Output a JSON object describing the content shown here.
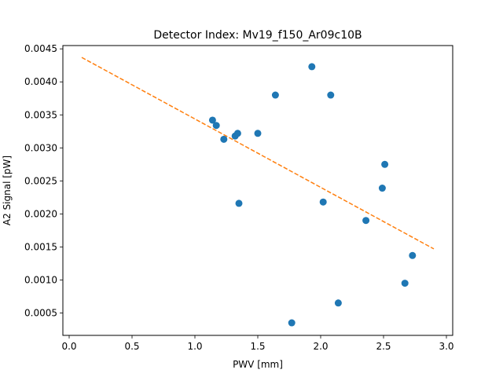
{
  "chart_data": {
    "type": "scatter",
    "title": "Detector Index: Mv19_f150_Ar09c10B",
    "xlabel": "PWV [mm]",
    "ylabel": "A2 Signal [pW]",
    "xlim": [
      -0.05,
      3.05
    ],
    "ylim": [
      0.00016,
      0.00455
    ],
    "xticks": [
      0.0,
      0.5,
      1.0,
      1.5,
      2.0,
      2.5,
      3.0
    ],
    "xtick_labels": [
      "0.0",
      "0.5",
      "1.0",
      "1.5",
      "2.0",
      "2.5",
      "3.0"
    ],
    "yticks": [
      0.0005,
      0.001,
      0.0015,
      0.002,
      0.0025,
      0.003,
      0.0035,
      0.004,
      0.0045
    ],
    "ytick_labels": [
      "0.0005",
      "0.0010",
      "0.0015",
      "0.0020",
      "0.0025",
      "0.0030",
      "0.0035",
      "0.0040",
      "0.0045"
    ],
    "grid": false,
    "series": [
      {
        "name": "data",
        "kind": "scatter",
        "color": "#1f77b4",
        "points": [
          [
            1.14,
            0.00342
          ],
          [
            1.17,
            0.00334
          ],
          [
            1.23,
            0.00313
          ],
          [
            1.32,
            0.00318
          ],
          [
            1.34,
            0.00322
          ],
          [
            1.35,
            0.00216
          ],
          [
            1.5,
            0.00322
          ],
          [
            1.64,
            0.0038
          ],
          [
            1.93,
            0.00423
          ],
          [
            1.77,
            0.00035
          ],
          [
            2.02,
            0.00218
          ],
          [
            2.08,
            0.0038
          ],
          [
            2.14,
            0.00065
          ],
          [
            2.36,
            0.0019
          ],
          [
            2.49,
            0.00239
          ],
          [
            2.51,
            0.00275
          ],
          [
            2.67,
            0.00095
          ],
          [
            2.73,
            0.00137
          ]
        ]
      },
      {
        "name": "fit",
        "kind": "line",
        "style": "dashed",
        "color": "#ff7f0e",
        "points": [
          [
            0.1,
            0.00437
          ],
          [
            2.9,
            0.00147
          ]
        ]
      }
    ]
  }
}
